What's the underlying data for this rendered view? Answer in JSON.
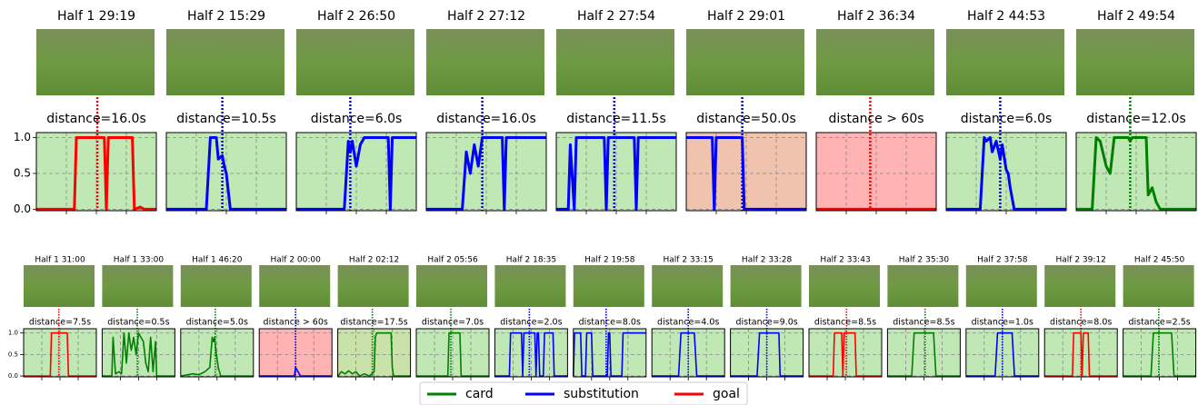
{
  "chart_data": [
    {
      "type": "line",
      "title": "Half 1 29:19",
      "subtitle": "distance=16.0s",
      "color": "#ff0000",
      "background": "#bfe8b4",
      "xlim": [
        0,
        60
      ],
      "xticks": [
        15,
        30,
        45
      ],
      "ylim": [
        -0.02,
        1.07
      ],
      "yticks": [
        {
          "value": 0,
          "label": "0.0"
        },
        {
          "value": 0.5,
          "label": "0.5"
        },
        {
          "value": 1,
          "label": "1.0"
        }
      ],
      "grid": true,
      "event_x": 30.5,
      "x": [
        0,
        19,
        20,
        34,
        35,
        36,
        48,
        49,
        52,
        54,
        60
      ],
      "values": [
        0,
        0,
        1,
        1,
        0,
        1,
        1,
        0,
        0.03,
        0,
        0
      ]
    },
    {
      "type": "line",
      "title": "Half 2 15:29",
      "subtitle": "distance=10.5s",
      "color": "#0000ff",
      "background": "#bfe8b4",
      "xlim": [
        0,
        60
      ],
      "xticks": [
        15,
        30,
        45
      ],
      "ylim": [
        -0.02,
        1.07
      ],
      "yticks": [
        0,
        0.5,
        1
      ],
      "grid": true,
      "event_x": 28,
      "x": [
        0,
        20,
        22,
        25,
        26,
        28,
        29,
        30,
        32,
        60
      ],
      "values": [
        0,
        0,
        1,
        1,
        0.7,
        0.75,
        0.6,
        0.5,
        0,
        0
      ]
    },
    {
      "type": "line",
      "title": "Half 2 26:50",
      "subtitle": "distance=6.0s",
      "color": "#0000ff",
      "background": "#bfe8b4",
      "xlim": [
        0,
        60
      ],
      "xticks": [
        15,
        30,
        45
      ],
      "ylim": [
        -0.02,
        1.07
      ],
      "yticks": [
        0,
        0.5,
        1
      ],
      "grid": true,
      "event_x": 27,
      "x": [
        0,
        24,
        26,
        27,
        28,
        30,
        32,
        34,
        46,
        47,
        48,
        60
      ],
      "values": [
        0,
        0,
        0.95,
        0.8,
        0.95,
        0.6,
        0.9,
        1,
        1,
        0,
        1,
        1
      ]
    },
    {
      "type": "line",
      "title": "Half 2 27:12",
      "subtitle": "distance=16.0s",
      "color": "#0000ff",
      "background": "#bfe8b4",
      "xlim": [
        0,
        60
      ],
      "xticks": [
        15,
        30,
        45
      ],
      "ylim": [
        -0.02,
        1.07
      ],
      "yticks": [
        0,
        0.5,
        1
      ],
      "grid": true,
      "event_x": 28,
      "x": [
        0,
        18,
        20,
        22,
        24,
        26,
        28,
        38,
        39,
        40,
        60
      ],
      "values": [
        0,
        0,
        0.8,
        0.5,
        0.9,
        0.6,
        1,
        1,
        0,
        1,
        1
      ]
    },
    {
      "type": "line",
      "title": "Half 2 27:54",
      "subtitle": "distance=11.5s",
      "color": "#0000ff",
      "background": "#bfe8b4",
      "xlim": [
        0,
        60
      ],
      "xticks": [
        15,
        30,
        45
      ],
      "ylim": [
        -0.02,
        1.07
      ],
      "yticks": [
        0,
        0.5,
        1
      ],
      "grid": true,
      "event_x": 29,
      "x": [
        0,
        6,
        7,
        9,
        10,
        24,
        25,
        26,
        39,
        40,
        41,
        60
      ],
      "values": [
        0,
        0,
        0.9,
        0,
        1,
        1,
        0,
        1,
        1,
        0,
        1,
        1
      ]
    },
    {
      "type": "line",
      "title": "Half 2 29:01",
      "subtitle": "distance=50.0s",
      "color": "#0000ff",
      "background": "#efc3ad",
      "xlim": [
        0,
        60
      ],
      "xticks": [
        15,
        30,
        45
      ],
      "ylim": [
        -0.02,
        1.07
      ],
      "yticks": [
        0,
        0.5,
        1
      ],
      "grid": true,
      "event_x": 28,
      "x": [
        0,
        13,
        14,
        15,
        28,
        29,
        60
      ],
      "values": [
        1,
        1,
        0,
        1,
        1,
        0,
        0
      ]
    },
    {
      "type": "line",
      "title": "Half 2 36:34",
      "subtitle": "distance > 60s",
      "color": "#ff0000",
      "background": "#ffb3b3",
      "xlim": [
        0,
        60
      ],
      "xticks": [
        15,
        30,
        45
      ],
      "ylim": [
        -0.02,
        1.07
      ],
      "yticks": [
        0,
        0.5,
        1
      ],
      "grid": true,
      "event_x": 27,
      "x": [
        0,
        60
      ],
      "values": [
        0,
        0
      ]
    },
    {
      "type": "line",
      "title": "Half 2 44:53",
      "subtitle": "distance=6.0s",
      "color": "#0000ff",
      "background": "#bfe8b4",
      "xlim": [
        0,
        60
      ],
      "xticks": [
        15,
        30,
        45
      ],
      "ylim": [
        -0.02,
        1.07
      ],
      "yticks": [
        0,
        0.5,
        1
      ],
      "grid": true,
      "event_x": 27,
      "x": [
        0,
        17,
        19,
        20,
        22,
        23,
        25,
        27,
        28,
        30,
        31,
        32,
        34,
        60
      ],
      "values": [
        0,
        0,
        1,
        0.95,
        1,
        0.8,
        0.95,
        0.7,
        0.9,
        0.55,
        0.5,
        0.3,
        0,
        0
      ]
    },
    {
      "type": "line",
      "title": "Half 2 49:54",
      "subtitle": "distance=12.0s",
      "color": "#008000",
      "background": "#bfe8b4",
      "xlim": [
        0,
        60
      ],
      "xticks": [
        15,
        30,
        45
      ],
      "ylim": [
        -0.02,
        1.07
      ],
      "yticks": [
        0,
        0.5,
        1
      ],
      "grid": true,
      "event_x": 27,
      "x": [
        0,
        8,
        10,
        12,
        15,
        17,
        19,
        21,
        26,
        27,
        28,
        35,
        36,
        38,
        40,
        42,
        60
      ],
      "values": [
        0,
        0,
        1,
        0.95,
        0.6,
        0.5,
        1,
        1,
        1,
        0.95,
        1,
        1,
        0.2,
        0.3,
        0.1,
        0,
        0
      ]
    },
    {
      "type": "line",
      "title": "Half 1 31:00",
      "subtitle": "distance=7.5s",
      "color": "#ff0000",
      "background": "#bfe8b4",
      "xlim": [
        0,
        60
      ],
      "xticks": [
        15,
        30,
        45
      ],
      "ylim": [
        -0.02,
        1.1
      ],
      "yticks": [
        {
          "value": 0,
          "label": "0.0"
        },
        {
          "value": 0.5,
          "label": "0.5"
        },
        {
          "value": 1,
          "label": "1.0"
        }
      ],
      "grid": true,
      "event_x": 29,
      "x": [
        0,
        22,
        23,
        36,
        37,
        60
      ],
      "values": [
        0,
        0,
        1,
        1,
        0,
        0
      ]
    },
    {
      "type": "line",
      "title": "Half 1 33:00",
      "subtitle": "distance=0.5s",
      "color": "#008000",
      "background": "#bfe8b4",
      "xlim": [
        0,
        60
      ],
      "xticks": [
        15,
        30,
        45
      ],
      "ylim": [
        -0.02,
        1.1
      ],
      "yticks": [
        0,
        0.5,
        1
      ],
      "grid": true,
      "event_x": 29,
      "x": [
        0,
        8,
        9,
        11,
        14,
        16,
        18,
        20,
        22,
        24,
        26,
        28,
        30,
        34,
        36,
        38,
        40,
        42,
        44,
        45,
        60
      ],
      "values": [
        0,
        0,
        0.9,
        0.05,
        0.1,
        0.05,
        1,
        0.3,
        1,
        0.6,
        0.9,
        0.5,
        1,
        0.8,
        0.3,
        0.1,
        0.9,
        0.1,
        0.8,
        0,
        0
      ]
    },
    {
      "type": "line",
      "title": "Half 1 46:20",
      "subtitle": "distance=5.0s",
      "color": "#008000",
      "background": "#bfe8b4",
      "xlim": [
        0,
        60
      ],
      "xticks": [
        15,
        30,
        45
      ],
      "ylim": [
        -0.02,
        1.1
      ],
      "yticks": [
        0,
        0.5,
        1
      ],
      "grid": true,
      "event_x": 28.5,
      "x": [
        0,
        10,
        15,
        20,
        24,
        26,
        27,
        28,
        29,
        30,
        31,
        33,
        60
      ],
      "values": [
        0,
        0.05,
        0.03,
        0.1,
        0.2,
        0.9,
        0.8,
        0.9,
        0.6,
        0.4,
        0.2,
        0,
        0
      ]
    },
    {
      "type": "line",
      "title": "Half 2 00:00",
      "subtitle": "distance > 60s",
      "color": "#0000ff",
      "background": "#ffb3b3",
      "xlim": [
        0,
        60
      ],
      "xticks": [
        15,
        30,
        45
      ],
      "ylim": [
        -0.02,
        1.1
      ],
      "yticks": [
        0,
        0.5,
        1
      ],
      "grid": true,
      "event_x": 30,
      "x": [
        0,
        29,
        30,
        32,
        34,
        60
      ],
      "values": [
        0,
        0,
        0.2,
        0.1,
        0,
        0
      ]
    },
    {
      "type": "line",
      "title": "Half 2 02:12",
      "subtitle": "distance=17.5s",
      "color": "#008000",
      "background": "#c9e2a9",
      "xlim": [
        0,
        60
      ],
      "xticks": [
        15,
        30,
        45
      ],
      "ylim": [
        -0.02,
        1.1
      ],
      "yticks": [
        0,
        0.5,
        1
      ],
      "grid": true,
      "event_x": 28.5,
      "x": [
        0,
        3,
        6,
        9,
        12,
        15,
        18,
        22,
        26,
        30,
        31,
        32,
        44,
        45,
        46,
        60
      ],
      "values": [
        0,
        0.1,
        0.05,
        0.12,
        0.05,
        0.1,
        0,
        0.05,
        0,
        0.1,
        0.9,
        1,
        1,
        0.2,
        0,
        0
      ]
    },
    {
      "type": "line",
      "title": "Half 2 05:56",
      "subtitle": "distance=7.0s",
      "color": "#008000",
      "background": "#bfe8b4",
      "xlim": [
        0,
        60
      ],
      "xticks": [
        15,
        30,
        45
      ],
      "ylim": [
        -0.02,
        1.1
      ],
      "yticks": [
        0,
        0.5,
        1
      ],
      "grid": true,
      "event_x": 28.5,
      "x": [
        0,
        26,
        27,
        36,
        37,
        60
      ],
      "values": [
        0,
        0,
        1,
        1,
        0,
        0
      ]
    },
    {
      "type": "line",
      "title": "Half 2 18:35",
      "subtitle": "distance=2.0s",
      "color": "#0000ff",
      "background": "#bfe8b4",
      "xlim": [
        0,
        60
      ],
      "xticks": [
        15,
        30,
        45
      ],
      "ylim": [
        -0.02,
        1.1
      ],
      "yticks": [
        0,
        0.5,
        1
      ],
      "grid": true,
      "event_x": 28.5,
      "x": [
        0,
        12,
        13,
        22,
        23,
        24,
        33,
        34,
        35,
        36,
        37,
        40,
        41,
        48,
        49,
        60
      ],
      "values": [
        0,
        0,
        1,
        1,
        0,
        1,
        1,
        0,
        1,
        1,
        0,
        0,
        1,
        1,
        0,
        0
      ]
    },
    {
      "type": "line",
      "title": "Half 2 19:58",
      "subtitle": "distance=8.0s",
      "color": "#0000ff",
      "background": "#bfe8b4",
      "xlim": [
        0,
        60
      ],
      "xticks": [
        15,
        30,
        45
      ],
      "ylim": [
        -0.02,
        1.1
      ],
      "yticks": [
        0,
        0.5,
        1
      ],
      "grid": true,
      "event_x": 27,
      "x": [
        0,
        1,
        6,
        7,
        10,
        11,
        15,
        16,
        28,
        29,
        30,
        31,
        40,
        41,
        60
      ],
      "values": [
        0,
        1,
        1,
        0,
        0,
        1,
        1,
        0,
        0,
        1,
        1,
        0,
        0,
        1,
        1
      ]
    },
    {
      "type": "line",
      "title": "Half 2 33:15",
      "subtitle": "distance=4.0s",
      "color": "#0000ff",
      "background": "#bfe8b4",
      "xlim": [
        0,
        60
      ],
      "xticks": [
        15,
        30,
        45
      ],
      "ylim": [
        -0.02,
        1.1
      ],
      "yticks": [
        0,
        0.5,
        1
      ],
      "grid": true,
      "event_x": 30,
      "x": [
        0,
        22,
        24,
        35,
        37,
        60
      ],
      "values": [
        0,
        0,
        1,
        1,
        0,
        0
      ]
    },
    {
      "type": "line",
      "title": "Half 2 33:28",
      "subtitle": "distance=9.0s",
      "color": "#0000ff",
      "background": "#bfe8b4",
      "xlim": [
        0,
        60
      ],
      "xticks": [
        15,
        30,
        45
      ],
      "ylim": [
        -0.02,
        1.1
      ],
      "yticks": [
        0,
        0.5,
        1
      ],
      "grid": true,
      "event_x": 30,
      "x": [
        0,
        22,
        24,
        40,
        41,
        60
      ],
      "values": [
        0,
        0,
        1,
        1,
        0,
        0
      ]
    },
    {
      "type": "line",
      "title": "Half 2 33:43",
      "subtitle": "distance=8.5s",
      "color": "#ff0000",
      "background": "#bfe8b4",
      "xlim": [
        0,
        60
      ],
      "xticks": [
        15,
        30,
        45
      ],
      "ylim": [
        -0.02,
        1.1
      ],
      "yticks": [
        0,
        0.5,
        1
      ],
      "grid": true,
      "event_x": 31,
      "x": [
        0,
        20,
        21,
        27,
        28,
        29,
        38,
        39,
        60
      ],
      "values": [
        0,
        0,
        1,
        1,
        0,
        1,
        1,
        0,
        0
      ]
    },
    {
      "type": "line",
      "title": "Half 2 35:30",
      "subtitle": "distance=8.5s",
      "color": "#008000",
      "background": "#bfe8b4",
      "xlim": [
        0,
        60
      ],
      "xticks": [
        15,
        30,
        45
      ],
      "ylim": [
        -0.02,
        1.1
      ],
      "yticks": [
        0,
        0.5,
        1
      ],
      "grid": true,
      "event_x": 31,
      "x": [
        0,
        20,
        22,
        38,
        40,
        60
      ],
      "values": [
        0,
        0,
        1,
        1,
        0,
        0
      ]
    },
    {
      "type": "line",
      "title": "Half 2 37:58",
      "subtitle": "distance=1.0s",
      "color": "#0000ff",
      "background": "#bfe8b4",
      "xlim": [
        0,
        60
      ],
      "xticks": [
        15,
        30,
        45
      ],
      "ylim": [
        -0.02,
        1.1
      ],
      "yticks": [
        0,
        0.5,
        1
      ],
      "grid": true,
      "event_x": 30,
      "x": [
        0,
        24,
        26,
        38,
        40,
        60
      ],
      "values": [
        0,
        0,
        1,
        1,
        0,
        0
      ]
    },
    {
      "type": "line",
      "title": "Half 2 39:12",
      "subtitle": "distance=8.0s",
      "color": "#ff0000",
      "background": "#bfe8b4",
      "xlim": [
        0,
        60
      ],
      "xticks": [
        15,
        30,
        45
      ],
      "ylim": [
        -0.02,
        1.1
      ],
      "yticks": [
        0,
        0.5,
        1
      ],
      "grid": true,
      "event_x": 30,
      "x": [
        0,
        23,
        24,
        30,
        31,
        32,
        36,
        37,
        60
      ],
      "values": [
        0,
        0,
        1,
        1,
        0,
        1,
        1,
        0,
        0
      ]
    },
    {
      "type": "line",
      "title": "Half 2 45:50",
      "subtitle": "distance=2.5s",
      "color": "#008000",
      "background": "#bfe8b4",
      "xlim": [
        0,
        60
      ],
      "xticks": [
        15,
        30,
        45
      ],
      "ylim": [
        -0.02,
        1.1
      ],
      "yticks": [
        0,
        0.5,
        1
      ],
      "grid": true,
      "event_x": 29.4,
      "x": [
        0,
        23,
        25,
        40,
        42,
        60
      ],
      "values": [
        0,
        0,
        1,
        1,
        0,
        0
      ]
    }
  ],
  "legend": [
    {
      "name": "card",
      "color": "#008000"
    },
    {
      "name": "substitution",
      "color": "#0000ff"
    },
    {
      "name": "goal",
      "color": "#ff0000"
    }
  ]
}
